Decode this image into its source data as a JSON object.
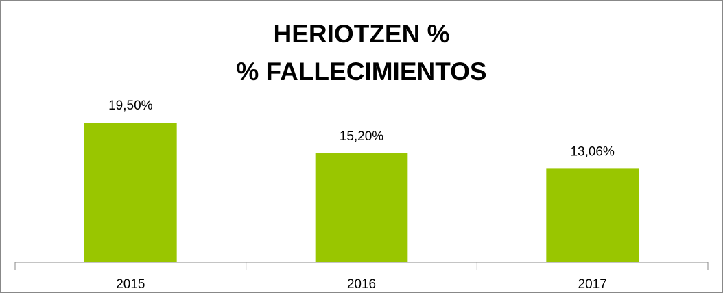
{
  "chart_data": {
    "type": "bar",
    "title": [
      "HERIOTZEN %",
      "% FALLECIMIENTOS"
    ],
    "categories": [
      "2015",
      "2016",
      "2017"
    ],
    "values": [
      19.5,
      15.2,
      13.06
    ],
    "value_labels": [
      "19,50%",
      "15,20%",
      "13,06%"
    ],
    "color": "#99c600",
    "ylim": [
      0,
      25
    ]
  }
}
